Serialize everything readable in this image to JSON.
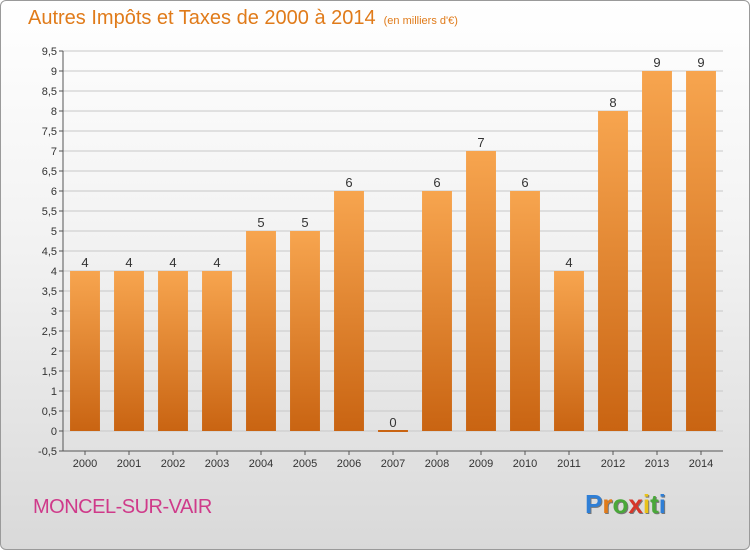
{
  "header": {
    "title": "Autres Impôts et Taxes de 2000 à 2014",
    "subtitle": "(en milliers d'€)"
  },
  "footer": {
    "commune": "MONCEL-SUR-VAIR",
    "logo_text": "Proxiti"
  },
  "colors": {
    "title": "#e07b1a",
    "commune": "#cf3a8a",
    "bar_light": "#f7a54f",
    "bar_dark": "#c96412"
  },
  "logo_letters": [
    {
      "ch": "P",
      "color": "#2f7fd6"
    },
    {
      "ch": "r",
      "color": "#e07b1a"
    },
    {
      "ch": "o",
      "color": "#4aa83a"
    },
    {
      "ch": "x",
      "color": "#d6372a"
    },
    {
      "ch": "i",
      "color": "#e9c21a"
    },
    {
      "ch": "t",
      "color": "#4aa83a"
    },
    {
      "ch": "i",
      "color": "#2f7fd6"
    }
  ],
  "chart_data": {
    "type": "bar",
    "title": "Autres Impôts et Taxes de 2000 à 2014",
    "subtitle": "(en milliers d'€)",
    "categories": [
      "2000",
      "2001",
      "2002",
      "2003",
      "2004",
      "2005",
      "2006",
      "2007",
      "2008",
      "2009",
      "2010",
      "2011",
      "2012",
      "2013",
      "2014"
    ],
    "values": [
      4,
      4,
      4,
      4,
      5,
      5,
      6,
      0,
      6,
      7,
      6,
      4,
      8,
      9,
      9
    ],
    "data_labels": [
      "4",
      "4",
      "4",
      "4",
      "5",
      "5",
      "6",
      "0",
      "6",
      "7",
      "6",
      "4",
      "8",
      "9",
      "9"
    ],
    "ylim": [
      -0.5,
      9.5
    ],
    "yticks": [
      "-0,5",
      "0",
      "0,5",
      "1",
      "1,5",
      "2",
      "2,5",
      "3",
      "3,5",
      "4",
      "4,5",
      "5",
      "5,5",
      "6",
      "6,5",
      "7",
      "7,5",
      "8",
      "8,5",
      "9",
      "9,5"
    ],
    "ytick_values": [
      -0.5,
      0,
      0.5,
      1,
      1.5,
      2,
      2.5,
      3,
      3.5,
      4,
      4.5,
      5,
      5.5,
      6,
      6.5,
      7,
      7.5,
      8,
      8.5,
      9,
      9.5
    ],
    "grid": true,
    "xlabel": "",
    "ylabel": ""
  }
}
